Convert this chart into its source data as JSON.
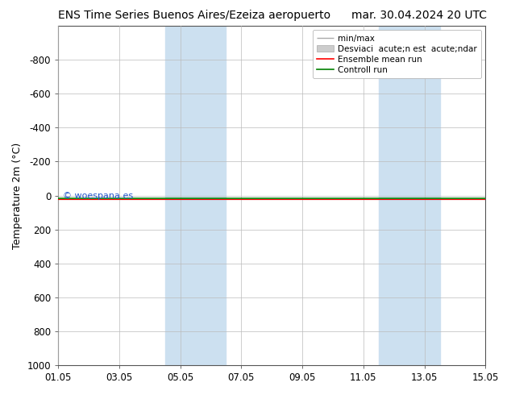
{
  "title_left": "ENS Time Series Buenos Aires/Ezeiza aeropuerto",
  "title_right": "mar. 30.04.2024 20 UTC",
  "ylabel": "Temperature 2m (°C)",
  "watermark": "© woespana.es",
  "ylim_top": -1000,
  "ylim_bottom": 1000,
  "yticks": [
    -800,
    -600,
    -400,
    -200,
    0,
    200,
    400,
    600,
    800,
    1000
  ],
  "x_start": 0,
  "x_end": 14,
  "xtick_labels": [
    "01.05",
    "03.05",
    "05.05",
    "07.05",
    "09.05",
    "11.05",
    "13.05",
    "15.05"
  ],
  "xtick_positions": [
    0,
    2,
    4,
    6,
    8,
    10,
    12,
    14
  ],
  "shaded_regions": [
    [
      3.5,
      4.5
    ],
    [
      4.5,
      5.5
    ],
    [
      10.5,
      11.5
    ],
    [
      11.5,
      12.5
    ]
  ],
  "shaded_color": "#cce0f0",
  "background_color": "#ffffff",
  "grid_color": "#bbbbbb",
  "line_color_green": "#008000",
  "line_color_red": "#ff0000",
  "line_color_gray": "#999999",
  "line_y": 20,
  "title_fontsize": 10,
  "tick_fontsize": 8.5,
  "ylabel_fontsize": 9,
  "watermark_color": "#2255cc",
  "watermark_fontsize": 8
}
